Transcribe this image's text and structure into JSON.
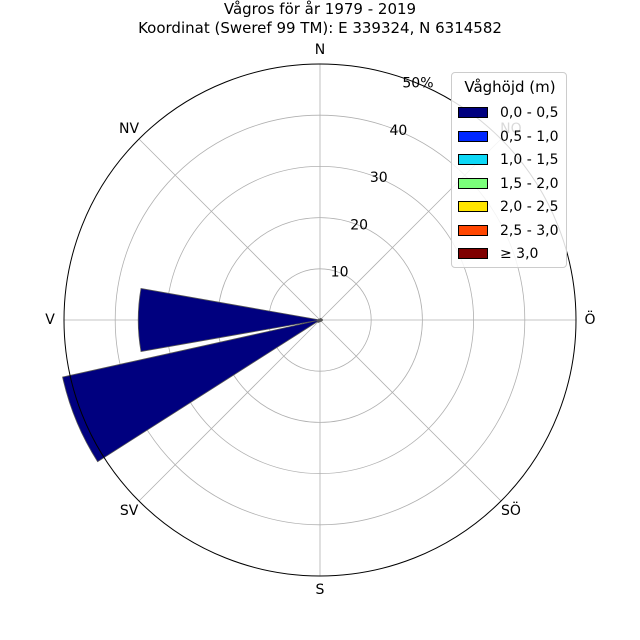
{
  "chart_data": {
    "type": "wind-rose",
    "title": "Vågros för år 1979 - 2019",
    "subtitle": "Koordinat (Sweref 99 TM): E 339324, N 6314582",
    "directions": [
      "N",
      "NO",
      "Ö",
      "SÖ",
      "S",
      "SV",
      "V",
      "NV"
    ],
    "radial_ticks": [
      "10",
      "20",
      "30",
      "40",
      "50%"
    ],
    "radial_tick_values": [
      10,
      20,
      30,
      40,
      50
    ],
    "rmax": 50,
    "legend": {
      "title": "Våghöjd (m)",
      "placement": "top-right",
      "items": [
        {
          "label": "0,0 - 0,5",
          "color": "#00007f"
        },
        {
          "label": "0,5 - 1,0",
          "color": "#0028ff"
        },
        {
          "label": "1,0 - 1,5",
          "color": "#0dd8f6"
        },
        {
          "label": "1,5 - 2,0",
          "color": "#7bff7b"
        },
        {
          "label": "2,0 - 2,5",
          "color": "#ffe500"
        },
        {
          "label": "2,5 - 3,0",
          "color": "#ff4600"
        },
        {
          "label": "≥ 3,0",
          "color": "#7f0000"
        }
      ]
    },
    "sectors": [
      {
        "direction_deg": 270,
        "values": [
          35.5,
          0,
          0,
          0,
          0,
          0,
          0
        ]
      },
      {
        "direction_deg": 247.5,
        "values": [
          51.5,
          0,
          0,
          0,
          0,
          0,
          0
        ]
      },
      {
        "direction_deg": 225,
        "values": [
          0.6,
          0,
          0,
          0,
          0,
          0,
          0
        ]
      },
      {
        "direction_deg": 292.5,
        "values": [
          0.3,
          0,
          0,
          0,
          0,
          0,
          0
        ]
      },
      {
        "direction_deg": 315,
        "values": [
          0.2,
          0,
          0,
          0,
          0,
          0,
          0
        ]
      },
      {
        "direction_deg": 337.5,
        "values": [
          0.2,
          0,
          0,
          0,
          0,
          0,
          0
        ]
      },
      {
        "direction_deg": 0,
        "values": [
          0.2,
          0,
          0,
          0,
          0,
          0,
          0
        ]
      },
      {
        "direction_deg": 22.5,
        "values": [
          0.3,
          0,
          0,
          0,
          0,
          0,
          0
        ]
      },
      {
        "direction_deg": 45,
        "values": [
          0.3,
          0,
          0,
          0,
          0,
          0,
          0
        ]
      },
      {
        "direction_deg": 67.5,
        "values": [
          0.4,
          0,
          0,
          0,
          0,
          0,
          0
        ]
      },
      {
        "direction_deg": 90,
        "values": [
          0.5,
          0,
          0,
          0,
          0,
          0,
          0
        ]
      },
      {
        "direction_deg": 112.5,
        "values": [
          0.4,
          0,
          0,
          0,
          0,
          0,
          0
        ]
      },
      {
        "direction_deg": 135,
        "values": [
          0.3,
          0,
          0,
          0,
          0,
          0,
          0
        ]
      },
      {
        "direction_deg": 157.5,
        "values": [
          0.3,
          0,
          0,
          0,
          0,
          0,
          0
        ]
      },
      {
        "direction_deg": 180,
        "values": [
          0.3,
          0,
          0,
          0,
          0,
          0,
          0
        ]
      },
      {
        "direction_deg": 202.5,
        "values": [
          0.4,
          0,
          0,
          0,
          0,
          0,
          0
        ]
      }
    ],
    "sector_width_deg": 20,
    "grid": true
  }
}
